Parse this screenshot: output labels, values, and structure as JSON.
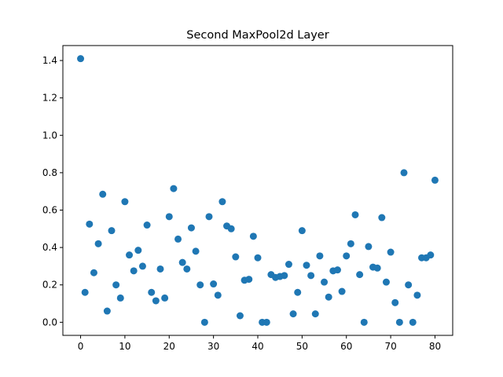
{
  "chart_data": {
    "type": "scatter",
    "title": "Second MaxPool2d Layer",
    "xlabel": "",
    "ylabel": "",
    "xlim": [
      -4,
      84
    ],
    "ylim": [
      -0.07,
      1.48
    ],
    "x_ticks": [
      0,
      10,
      20,
      30,
      40,
      50,
      60,
      70,
      80
    ],
    "y_ticks": [
      0.0,
      0.2,
      0.4,
      0.6,
      0.8,
      1.0,
      1.2,
      1.4
    ],
    "grid": false,
    "legend": false,
    "marker_color": "#1f77b4",
    "series": [
      {
        "x": [
          0,
          1,
          2,
          3,
          4,
          5,
          6,
          7,
          8,
          9,
          10,
          11,
          12,
          13,
          14,
          15,
          16,
          17,
          18,
          19,
          20,
          21,
          22,
          23,
          24,
          25,
          26,
          27,
          28,
          29,
          30,
          31,
          32,
          33,
          34,
          35,
          36,
          37,
          38,
          39,
          40,
          41,
          42,
          43,
          44,
          45,
          46,
          47,
          48,
          49,
          50,
          51,
          52,
          53,
          54,
          55,
          56,
          57,
          58,
          59,
          60,
          61,
          62,
          63,
          64,
          65,
          66,
          67,
          68,
          69,
          70,
          71,
          72,
          73,
          74,
          75,
          76,
          77,
          78,
          79,
          80
        ],
        "y": [
          1.41,
          0.16,
          0.525,
          0.265,
          0.42,
          0.685,
          0.06,
          0.49,
          0.2,
          0.13,
          0.645,
          0.36,
          0.275,
          0.385,
          0.3,
          0.52,
          0.16,
          0.115,
          0.285,
          0.13,
          0.565,
          0.715,
          0.445,
          0.32,
          0.285,
          0.505,
          0.38,
          0.2,
          0.0,
          0.565,
          0.205,
          0.145,
          0.645,
          0.515,
          0.5,
          0.35,
          0.035,
          0.225,
          0.23,
          0.46,
          0.345,
          0.0,
          0.0,
          0.255,
          0.24,
          0.245,
          0.25,
          0.31,
          0.045,
          0.16,
          0.49,
          0.305,
          0.25,
          0.045,
          0.355,
          0.215,
          0.135,
          0.275,
          0.28,
          0.165,
          0.355,
          0.42,
          0.575,
          0.255,
          0.0,
          0.405,
          0.295,
          0.29,
          0.56,
          0.215,
          0.375,
          0.105,
          0.0,
          0.8,
          0.2,
          0.0,
          0.145,
          0.345,
          0.345,
          0.36,
          0.76
        ]
      }
    ]
  }
}
